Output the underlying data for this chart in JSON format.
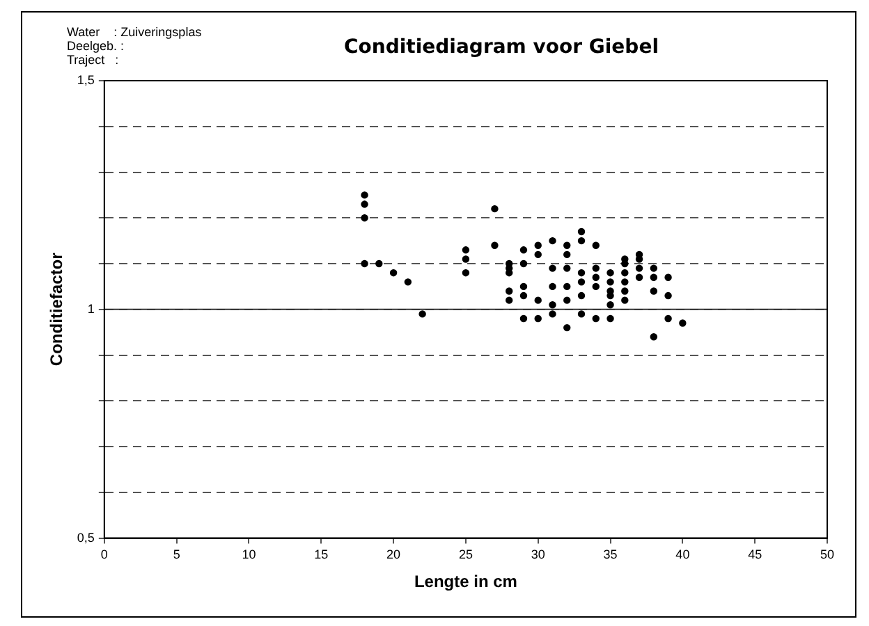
{
  "chart_data": {
    "type": "scatter",
    "title": "Conditiediagram voor Giebel",
    "annotations": [
      "Water    : Zuiveringsplas",
      "Deelgeb. :",
      "Traject   :"
    ],
    "xlabel": "Lengte in cm",
    "ylabel": "Conditiefactor",
    "xlim": [
      0,
      50
    ],
    "xticks": [
      0,
      5,
      10,
      15,
      20,
      25,
      30,
      35,
      40,
      45,
      50
    ],
    "ylim": [
      0.5,
      1.5
    ],
    "yticks": [
      {
        "value": 0.5,
        "label": "0,5"
      },
      {
        "value": 0.6,
        "label": null
      },
      {
        "value": 0.7,
        "label": null
      },
      {
        "value": 0.8,
        "label": null
      },
      {
        "value": 0.9,
        "label": null
      },
      {
        "value": 1,
        "label": "1"
      },
      {
        "value": 1.1,
        "label": null
      },
      {
        "value": 1.2,
        "label": null
      },
      {
        "value": 1.3,
        "label": null
      },
      {
        "value": 1.4,
        "label": null
      },
      {
        "value": 1.5,
        "label": "1,5"
      }
    ],
    "grid": "y",
    "line_style": "dashed",
    "marker": "circle",
    "legend": false,
    "ref_lines": [
      {
        "axis": "y",
        "value": 1,
        "color": "#333333",
        "line_style": "solid"
      }
    ],
    "series": [
      {
        "color": "#000000",
        "x": [
          18,
          18,
          18,
          18,
          19,
          20,
          21,
          22,
          25,
          25,
          25,
          27,
          27,
          28,
          28,
          28,
          28,
          28,
          29,
          29,
          29,
          29,
          29,
          30,
          30,
          30,
          30,
          31,
          31,
          31,
          31,
          31,
          32,
          32,
          32,
          32,
          32,
          32,
          33,
          33,
          33,
          33,
          33,
          33,
          34,
          34,
          34,
          34,
          34,
          35,
          35,
          35,
          35,
          35,
          35,
          36,
          36,
          36,
          36,
          36,
          36,
          37,
          37,
          37,
          37,
          38,
          38,
          38,
          38,
          39,
          39,
          39,
          40
        ],
        "values": [
          1.25,
          1.23,
          1.2,
          1.1,
          1.1,
          1.08,
          1.06,
          0.99,
          1.13,
          1.11,
          1.08,
          1.22,
          1.14,
          1.1,
          1.09,
          1.08,
          1.04,
          1.02,
          1.13,
          1.1,
          1.05,
          1.03,
          0.98,
          1.14,
          1.12,
          1.02,
          0.98,
          1.15,
          1.09,
          1.05,
          1.01,
          0.99,
          1.14,
          1.12,
          1.09,
          1.05,
          1.02,
          0.96,
          1.17,
          1.15,
          1.08,
          1.06,
          1.03,
          0.99,
          1.14,
          1.09,
          1.07,
          1.05,
          0.98,
          1.08,
          1.06,
          1.04,
          1.03,
          1.01,
          0.98,
          1.11,
          1.1,
          1.08,
          1.06,
          1.04,
          1.02,
          1.12,
          1.11,
          1.09,
          1.07,
          1.09,
          1.07,
          1.04,
          0.94,
          1.07,
          1.03,
          0.98,
          0.97
        ]
      }
    ]
  }
}
